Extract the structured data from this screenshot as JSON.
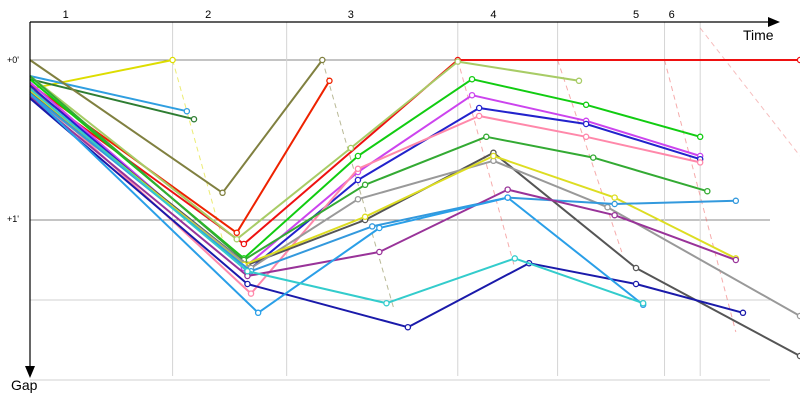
{
  "chart_data": {
    "type": "line",
    "title": "",
    "xlabel": "Time",
    "ylabel": "Gap",
    "lap_labels": [
      "1",
      "2",
      "3",
      "4",
      "5",
      "6"
    ],
    "lap_times": [
      0.5,
      2.5,
      4.5,
      6.5,
      8.5,
      9.0
    ],
    "lap_boundaries": [
      2.0,
      3.6,
      6.0,
      7.4,
      8.9,
      9.4
    ],
    "gridlines_y": [
      0,
      1,
      1.5,
      2.0
    ],
    "y_ticks": [
      {
        "value": 0,
        "label": "+0'"
      },
      {
        "value": 1,
        "label": "+1'"
      }
    ],
    "xlim": [
      0,
      10.8
    ],
    "ylim": [
      0,
      2.0
    ],
    "grid": true,
    "series": [
      {
        "color": "#dddd00",
        "x": [
          0,
          2.0
        ],
        "y": [
          0.18,
          0.0
        ]
      },
      {
        "color": "#2e7d32",
        "x": [
          0,
          2.3
        ],
        "y": [
          0.12,
          0.37
        ]
      },
      {
        "color": "#2f9ee0",
        "x": [
          0,
          2.2
        ],
        "y": [
          0.1,
          0.32
        ]
      },
      {
        "color": "#808040",
        "x": [
          0,
          2.7,
          4.1
        ],
        "y": [
          0.0,
          0.83,
          0.0
        ]
      },
      {
        "color": "#ee2200",
        "x": [
          0,
          2.9,
          4.2
        ],
        "y": [
          0.15,
          1.08,
          0.13
        ]
      },
      {
        "color": "#ee1111",
        "x": [
          0,
          3.0,
          6.0,
          10.8
        ],
        "y": [
          0.18,
          1.15,
          0.0,
          0.0
        ]
      },
      {
        "color": "#a8cc66",
        "x": [
          0,
          2.9,
          4.5,
          6.0,
          7.7
        ],
        "y": [
          0.1,
          1.12,
          0.55,
          0.01,
          0.13
        ]
      },
      {
        "color": "#11cc11",
        "x": [
          0,
          3.0,
          4.6,
          6.2,
          7.8,
          9.4
        ],
        "y": [
          0.12,
          1.24,
          0.6,
          0.12,
          0.28,
          0.48
        ]
      },
      {
        "color": "#cc44ee",
        "x": [
          0,
          3.0,
          4.6,
          6.2,
          7.8,
          9.4
        ],
        "y": [
          0.14,
          1.3,
          0.7,
          0.22,
          0.38,
          0.6
        ]
      },
      {
        "color": "#2222cc",
        "x": [
          0,
          3.05,
          4.6,
          6.3,
          7.8,
          9.4
        ],
        "y": [
          0.16,
          1.32,
          0.75,
          0.3,
          0.4,
          0.62
        ]
      },
      {
        "color": "#ff88aa",
        "x": [
          0,
          3.1,
          4.6,
          6.3,
          7.8,
          9.4
        ],
        "y": [
          0.18,
          1.46,
          0.68,
          0.35,
          0.48,
          0.64
        ]
      },
      {
        "color": "#33aa33",
        "x": [
          0,
          3.0,
          4.7,
          6.4,
          7.9,
          9.5
        ],
        "y": [
          0.1,
          1.25,
          0.78,
          0.48,
          0.61,
          0.82
        ]
      },
      {
        "color": "#555555",
        "x": [
          0,
          3.05,
          4.7,
          6.5,
          8.5,
          10.8
        ],
        "y": [
          0.2,
          1.28,
          1.0,
          0.58,
          1.3,
          1.85
        ]
      },
      {
        "color": "#999999",
        "x": [
          0,
          3.1,
          4.6,
          6.5,
          8.1,
          10.8
        ],
        "y": [
          0.22,
          1.3,
          0.87,
          0.63,
          0.92,
          1.6
        ]
      },
      {
        "color": "#dddd22",
        "x": [
          0,
          3.0,
          4.7,
          6.5,
          8.2,
          9.9
        ],
        "y": [
          0.19,
          1.28,
          0.98,
          0.6,
          0.86,
          1.24
        ]
      },
      {
        "color": "#3399dd",
        "x": [
          0,
          3.1,
          4.8,
          6.7,
          8.2,
          9.9
        ],
        "y": [
          0.21,
          1.32,
          1.04,
          0.86,
          0.9,
          0.88
        ]
      },
      {
        "color": "#993399",
        "x": [
          0,
          3.05,
          4.9,
          6.7,
          8.2,
          9.9
        ],
        "y": [
          0.23,
          1.35,
          1.2,
          0.81,
          0.97,
          1.25
        ]
      },
      {
        "color": "#1a1aaa",
        "x": [
          0,
          3.05,
          5.3,
          7.0,
          8.5,
          10.0
        ],
        "y": [
          0.24,
          1.4,
          1.67,
          1.27,
          1.4,
          1.58
        ]
      },
      {
        "color": "#2a9fe8",
        "x": [
          0,
          3.2,
          4.9,
          6.7,
          8.6
        ],
        "y": [
          0.21,
          1.58,
          1.05,
          0.86,
          1.53
        ]
      },
      {
        "color": "#33cccc",
        "x": [
          0,
          3.05,
          5.0,
          6.8,
          8.6
        ],
        "y": [
          0.18,
          1.32,
          1.52,
          1.24,
          1.52
        ]
      }
    ],
    "series_fade": [
      {
        "color": "#dddd00",
        "x": [
          2.0,
          2.7
        ],
        "y": [
          0.0,
          1.12
        ]
      },
      {
        "color": "#808040",
        "x": [
          4.1,
          5.1
        ],
        "y": [
          0.0,
          1.55
        ]
      },
      {
        "color": "#ee6666",
        "x": [
          6.0,
          6.8
        ],
        "y": [
          0.0,
          1.3
        ]
      },
      {
        "color": "#ee6666",
        "x": [
          7.4,
          8.3
        ],
        "y": [
          0.0,
          1.2
        ]
      },
      {
        "color": "#ee6666",
        "x": [
          8.9,
          9.9
        ],
        "y": [
          0.0,
          1.7
        ]
      },
      {
        "color": "#ee8888",
        "x": [
          9.4,
          10.8
        ],
        "y": [
          -0.2,
          0.6
        ]
      }
    ]
  }
}
